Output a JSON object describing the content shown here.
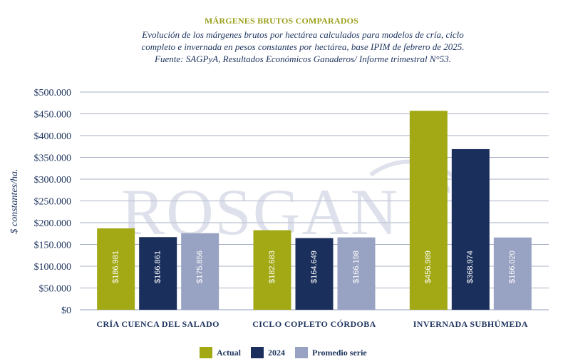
{
  "header": {
    "title": "MÁRGENES BRUTOS COMPARADOS",
    "subtitle_lines": [
      "Evolución de los márgenes brutos por hectárea calculados para modelos de cría, ciclo",
      "completo e invernada en pesos constantes por hectárea, base IPIM de febrero de 2025.",
      "Fuente: SAGPyA, Resultados Económicos Ganaderos/ Informe trimestral N°53."
    ]
  },
  "watermark": "ROSGAN",
  "chart_data": {
    "type": "bar",
    "title": "MÁRGENES BRUTOS COMPARADOS",
    "xlabel": "",
    "ylabel": "$ constantes/ha.",
    "ylim": [
      0,
      500000
    ],
    "yticks": [
      0,
      50000,
      100000,
      150000,
      200000,
      250000,
      300000,
      350000,
      400000,
      450000,
      500000
    ],
    "ytick_labels": [
      "$0",
      "$50.000",
      "$100.000",
      "$150.000",
      "$200.000",
      "$250.000",
      "$300.000",
      "$350.000",
      "$400.000",
      "$450.000",
      "$500.000"
    ],
    "grid": true,
    "legend_position": "bottom",
    "categories": [
      "CRÍA CUENCA DEL SALADO",
      "CICLO COPLETO CÓRDOBA",
      "INVERNADA SUBHÚMEDA"
    ],
    "series": [
      {
        "name": "Actual",
        "color": "#a2a914",
        "values": [
          186981,
          182683,
          456989
        ],
        "labels": [
          "$186.981",
          "$182.683",
          "$456.989"
        ]
      },
      {
        "name": "2024",
        "color": "#1a2f5c",
        "values": [
          166861,
          164649,
          368974
        ],
        "labels": [
          "$166.861",
          "$164.649",
          "$368.974"
        ]
      },
      {
        "name": "Promedio serie",
        "color": "#98a2c2",
        "values": [
          175856,
          166198,
          166020
        ],
        "labels": [
          "$175.856",
          "$166.198",
          "$166.020"
        ]
      }
    ]
  }
}
